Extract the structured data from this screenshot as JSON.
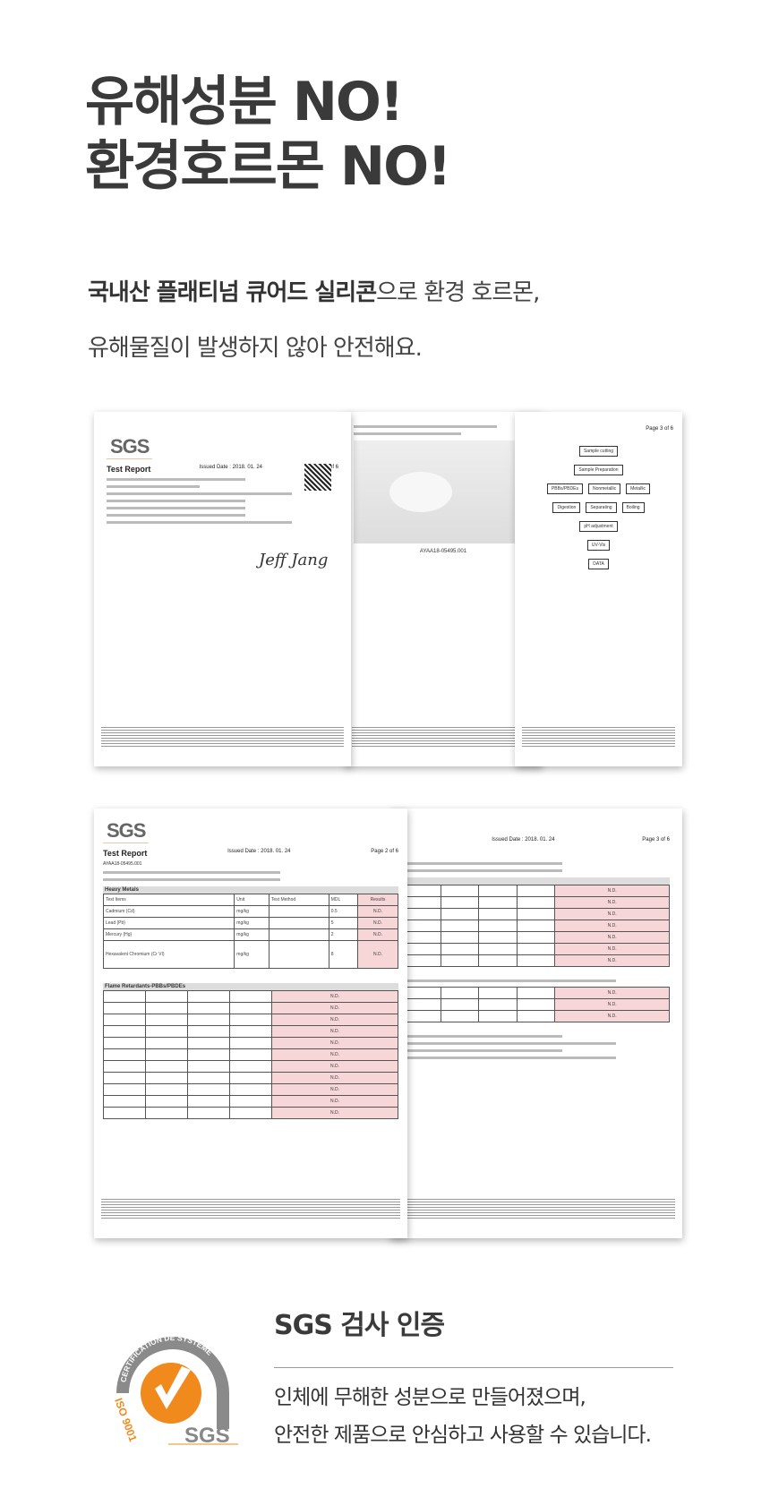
{
  "hero": {
    "line1": "유해성분 NO!",
    "line2": "환경호르몬 NO!"
  },
  "intro": {
    "bold": "국내산 플래티넘 큐어드 실리콘",
    "rest1": "으로 환경 호르몬,",
    "line2": "유해물질이 발생하지 않아 안전해요."
  },
  "documents": {
    "logo": "SGS",
    "report_title": "Test Report",
    "issued_date": "Issued Date : 2018. 01. 24",
    "page1": "Page 1 of 6",
    "page2": "Page 2 of 6",
    "page3": "Page 3 of 6",
    "sample_no": "AYAA18-05495.001",
    "photo_caption": "AYAA18-05495.001",
    "heavy_metals": "Heavy Metals",
    "flame_retardants": "Flame Retardants-PBBs/PBDEs",
    "heavy_rows": [
      {
        "name": "Cadmium (Cd)",
        "unit": "mg/kg",
        "mdl": "0.5",
        "result": "N.D."
      },
      {
        "name": "Lead (Pb)",
        "unit": "mg/kg",
        "mdl": "5",
        "result": "N.D."
      },
      {
        "name": "Mercury (Hg)",
        "unit": "mg/kg",
        "mdl": "2",
        "result": "N.D."
      },
      {
        "name": "Hexavalent Chromium (Cr VI)",
        "unit": "mg/kg",
        "mdl": "8",
        "result": "N.D."
      }
    ],
    "col_headers": [
      "Test Items",
      "Unit",
      "Test Method",
      "MDL",
      "Results"
    ]
  },
  "certification": {
    "badge_ring_text": "CERTIFICATION DE SYSTÈME",
    "badge_iso": "ISO 9001",
    "badge_brand": "SGS",
    "title": "SGS 검사 인증",
    "body_line1": "인체에 무해한 성분으로 만들어졌으며,",
    "body_line2": "안전한 제품으로 안심하고 사용할 수 있습니다.",
    "accent_color": "#f08a1c"
  }
}
